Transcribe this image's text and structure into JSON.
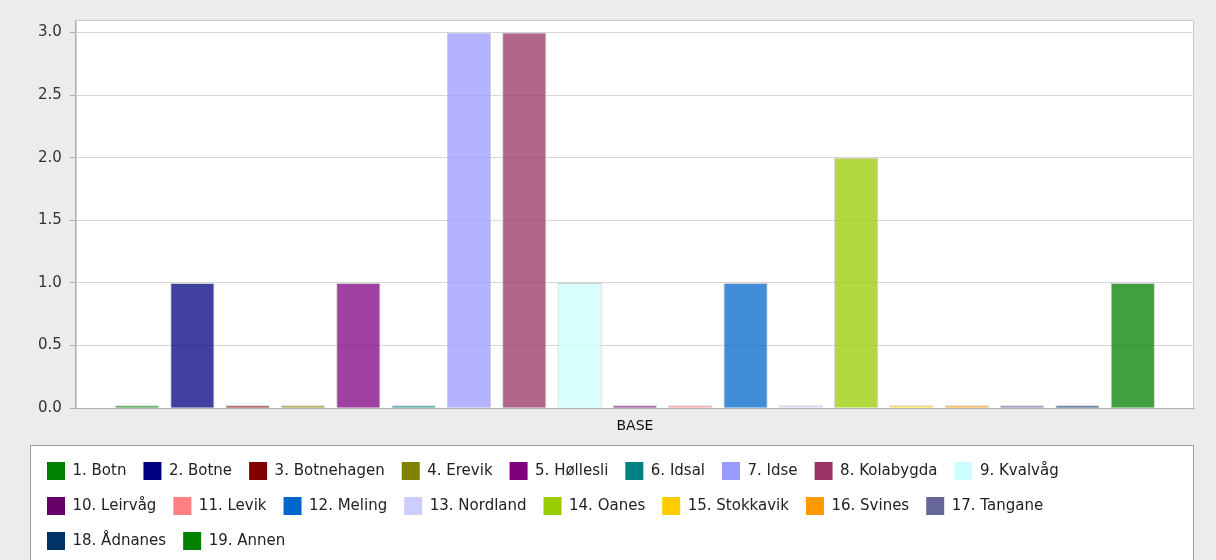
{
  "chart_data": {
    "type": "bar",
    "categories": [
      "BASE"
    ],
    "series": [
      {
        "name": "1. Botn",
        "color": "#008000",
        "values": [
          0
        ]
      },
      {
        "name": "2. Botne",
        "color": "#000080",
        "values": [
          1
        ]
      },
      {
        "name": "3. Botnehagen",
        "color": "#800000",
        "values": [
          0
        ]
      },
      {
        "name": "4. Erevik",
        "color": "#808000",
        "values": [
          0
        ]
      },
      {
        "name": "5. Høllesli",
        "color": "#800080",
        "values": [
          1
        ]
      },
      {
        "name": "6. Idsal",
        "color": "#008080",
        "values": [
          0
        ]
      },
      {
        "name": "7. Idse",
        "color": "#9999ff",
        "values": [
          3
        ]
      },
      {
        "name": "8. Kolabygda",
        "color": "#993366",
        "values": [
          3
        ]
      },
      {
        "name": "9. Kvalvåg",
        "color": "#ccffff",
        "values": [
          1
        ]
      },
      {
        "name": "10. Leirvåg",
        "color": "#660066",
        "values": [
          0
        ]
      },
      {
        "name": "11. Levik",
        "color": "#ff8080",
        "values": [
          0
        ]
      },
      {
        "name": "12. Meling",
        "color": "#0066cc",
        "values": [
          1
        ]
      },
      {
        "name": "13. Nordland",
        "color": "#ccccff",
        "values": [
          0
        ]
      },
      {
        "name": "14. Oanes",
        "color": "#99cc00",
        "values": [
          2
        ]
      },
      {
        "name": "15. Stokkavik",
        "color": "#ffcc00",
        "values": [
          0
        ]
      },
      {
        "name": "16. Svines",
        "color": "#ff9900",
        "values": [
          0
        ]
      },
      {
        "name": "17. Tangane",
        "color": "#666699",
        "values": [
          0
        ]
      },
      {
        "name": "18. Ådnanes",
        "color": "#003366",
        "values": [
          0
        ]
      },
      {
        "name": "19. Annen",
        "color": "#008000",
        "values": [
          1
        ]
      }
    ],
    "ylim": [
      0,
      3.1
    ],
    "yticks": [
      {
        "value": 0,
        "label": "0.0"
      },
      0.5,
      {
        "value": 1,
        "label": "1.0"
      },
      1.5,
      {
        "value": 2,
        "label": "2.0"
      },
      2.5,
      {
        "value": 3,
        "label": "3.0"
      }
    ],
    "grid": "y",
    "legend": "bottom"
  }
}
